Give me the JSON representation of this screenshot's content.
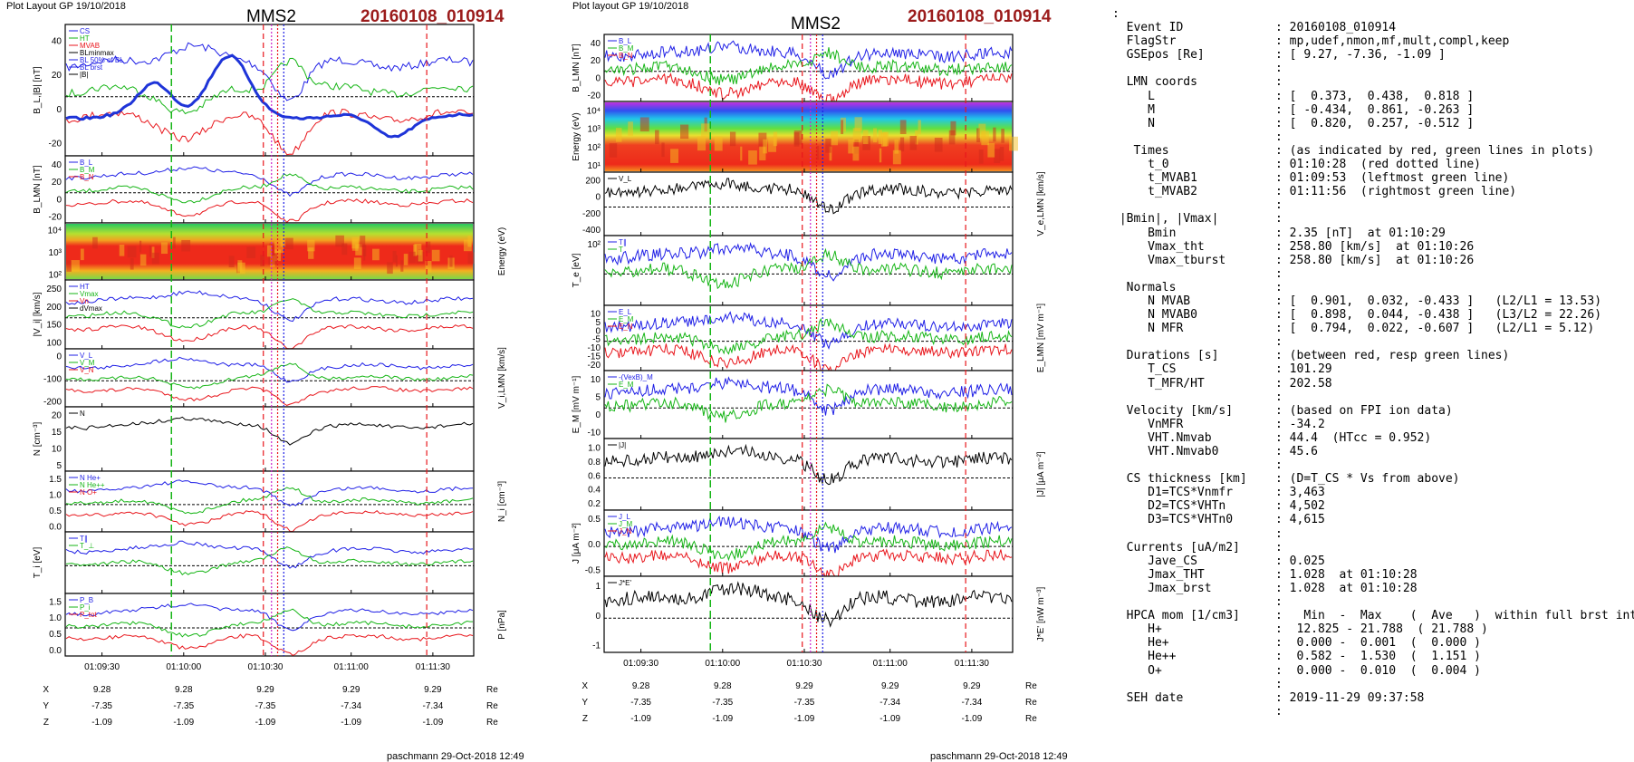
{
  "left": {
    "header": "Plot Layout GP 19/10/2018",
    "spacecraft": "MMS2",
    "event": "20160108_010914",
    "footer": "paschmann 29-Oct-2018 12:49",
    "panels": [
      {
        "ylabel": "B_L,|B| [nT]",
        "yticks": [
          "40",
          "20",
          "0",
          "-20"
        ],
        "legend": [
          "CS",
          "HT",
          "MVAB",
          "BLminmax",
          "BL 50% of BL",
          "BL brst",
          "|B|"
        ]
      },
      {
        "ylabel": "B_LMN [nT]",
        "yticks": [
          "40",
          "20",
          "0",
          "-20"
        ],
        "legend": [
          "B_L",
          "B_M",
          "B_N"
        ]
      },
      {
        "ylabel": "Energy (eV)",
        "yticks": [
          "10^4",
          "10^3",
          "10^2"
        ],
        "legend": []
      },
      {
        "ylabel": "|V_i| [km/s]",
        "yticks": [
          "250",
          "200",
          "150",
          "100"
        ],
        "legend": [
          "HT",
          "Vmax",
          "Vn",
          "dVmax"
        ]
      },
      {
        "ylabel": "V_i,LMN [km/s]",
        "yticks": [
          "0",
          "-100",
          "-200"
        ],
        "legend": [
          "V_L",
          "V_M",
          "V_N"
        ]
      },
      {
        "ylabel": "N [cm^-3]",
        "yticks": [
          "20",
          "15",
          "10",
          "5"
        ],
        "legend": [
          "N"
        ]
      },
      {
        "ylabel": "N_i [cm^-3]",
        "yticks": [
          "1.5",
          "1.0",
          "0.5",
          "0.0"
        ],
        "legend": [
          "N He+",
          "N He++",
          "N O+"
        ]
      },
      {
        "ylabel": "T_i [eV]",
        "yticks": [],
        "legend": [
          "T_||",
          "T_perp"
        ]
      },
      {
        "ylabel": "P [nPa]",
        "yticks": [
          "1.5",
          "1.0",
          "0.5",
          "0.0"
        ],
        "legend": [
          "P_B",
          "P_i",
          "P_tot"
        ]
      }
    ]
  },
  "middle": {
    "header": "Plot layout GP 19/10/2018",
    "spacecraft": "MMS2",
    "event": "20160108_010914",
    "footer": "paschmann 29-Oct-2018 12:49",
    "panels": [
      {
        "ylabel": "B_LMN [nT]",
        "yticks": [
          "40",
          "20",
          "0",
          "-20"
        ],
        "legend": [
          "B_L",
          "B_M",
          "B_N"
        ]
      },
      {
        "ylabel": "Energy (eV)",
        "yticks": [
          "10^4",
          "10^3",
          "10^2",
          "10^1"
        ],
        "legend": []
      },
      {
        "ylabel": "V_e,LMN [km/s]",
        "yticks": [
          "200",
          "0",
          "-200",
          "-400"
        ],
        "legend": [
          "V_L"
        ]
      },
      {
        "ylabel": "T_e [eV]",
        "yticks": [
          "10^2"
        ],
        "legend": [
          "T_||",
          "T"
        ]
      },
      {
        "ylabel": "E_LMN [mV m^-1]",
        "yticks": [
          "10",
          "5",
          "0",
          "-5",
          "-10",
          "-15",
          "-20"
        ],
        "legend": [
          "E_L",
          "E_M",
          "E_N"
        ]
      },
      {
        "ylabel": "E_M [mV m^-1]",
        "yticks": [
          "10",
          "5",
          "0",
          "-10"
        ],
        "legend": [
          "-(VexB)_M",
          "E_M"
        ]
      },
      {
        "ylabel": "|J| [uA m^-2]",
        "yticks": [
          "1.0",
          "0.8",
          "0.6",
          "0.4",
          "0.2"
        ],
        "legend": [
          "|J|"
        ]
      },
      {
        "ylabel": "J [uA m^-2]",
        "yticks": [
          "0.5",
          "0.0",
          "-0.5"
        ],
        "legend": [
          "J_L",
          "J_M",
          "J_N"
        ]
      },
      {
        "ylabel": "J*E' [nW m^-3]",
        "yticks": [
          "1",
          "0",
          "-1"
        ],
        "legend": [
          "J*E'"
        ]
      }
    ]
  },
  "time_ticks": [
    "01:09:30",
    "01:10:00",
    "01:10:30",
    "01:11:00",
    "01:11:30"
  ],
  "position_table": {
    "rows": [
      {
        "label": "X",
        "values": [
          "9.28",
          "9.28",
          "9.29",
          "9.29",
          "9.29"
        ],
        "unit": "Re"
      },
      {
        "label": "Y",
        "values": [
          "-7.35",
          "-7.35",
          "-7.35",
          "-7.34",
          "-7.34"
        ],
        "unit": "Re"
      },
      {
        "label": "Z",
        "values": [
          "-1.09",
          "-1.09",
          "-1.09",
          "-1.09",
          "-1.09"
        ],
        "unit": "Re"
      }
    ]
  },
  "info_text": ":\n  Event ID             : 20160108_010914\n  FlagStr              : mp,udef,nmon,mf,mult,compl,keep\n  GSEpos [Re]          : [ 9.27, -7.36, -1.09 ]\n                       :\n  LMN coords           :\n     L                 : [  0.373,  0.438,  0.818 ]\n     M                 : [ -0.434,  0.861, -0.263 ]\n     N                 : [  0.820,  0.257, -0.512 ]\n                       :\n   Times               : (as indicated by red, green lines in plots)\n     t_0               : 01:10:28  (red dotted line)\n     t_MVAB1           : 01:09:53  (leftmost green line)\n     t_MVAB2           : 01:11:56  (rightmost green line)\n                       :\n |Bmin|, |Vmax|        :\n     Bmin              : 2.35 [nT]  at 01:10:29\n     Vmax_tht          : 258.80 [km/s]  at 01:10:26\n     Vmax_tburst       : 258.80 [km/s]  at 01:10:26\n                       :\n  Normals              :\n     N MVAB            : [  0.901,  0.032, -0.433 ]   (L2/L1 = 13.53)\n     N MVAB0           : [  0.898,  0.044, -0.438 ]   (L3/L2 = 22.26)\n     N MFR             : [  0.794,  0.022, -0.607 ]   (L2/L1 = 5.12)\n                       :\n  Durations [s]        : (between red, resp green lines)\n     T_CS              : 101.29\n     T_MFR/HT          : 202.58\n                       :\n  Velocity [km/s]      : (based on FPI ion data)\n     VnMFR             : -34.2\n     VHT.Nmvab         : 44.4  (HTcc = 0.952)\n     VHT.Nmvab0        : 45.6\n                       :\n  CS thickness [km]    : (D=T_CS * Vs from above)\n     D1=TCS*Vnmfr      : 3,463\n     D2=TCS*VHTn       : 4,502\n     D3=TCS*VHTn0      : 4,615\n                       :\n  Currents [uA/m2]     :\n     Jave_CS           : 0.025\n     Jmax_THT          : 1.028  at 01:10:28\n     Jmax_brst         : 1.028  at 01:10:28\n                       :\n  HPCA mom [1/cm3]     :   Min  -  Max    (  Ave   )  within full brst int\n     H+                :  12.825 - 21.788  ( 21.788 )\n     He+               :  0.000 -  0.001  (  0.000 )\n     He++              :  0.582 -  1.530  (  1.151 )\n     O+                :  0.000 -  0.010  (  0.004 )\n                       :\n  SEH date             : 2019-11-29 09:37:58\n                       :",
  "colors": {
    "event": "#9b1b1b",
    "red": "#e8161c",
    "green": "#16b516",
    "blue": "#1f1fe6",
    "black": "#000000",
    "magenta": "#cc22cc",
    "blue_thick": "#1e34d8",
    "gray": "#777777"
  },
  "chart_data": [
    {
      "type": "line",
      "title": "MMS2 20160108_010914",
      "x": [
        "01:09:30",
        "01:10:00",
        "01:10:30",
        "01:11:00",
        "01:11:30"
      ],
      "series": [
        {
          "name": "B_L",
          "values": [
            -5,
            20,
            30,
            -10,
            -20
          ]
        },
        {
          "name": "|B|",
          "values": [
            15,
            25,
            40,
            35,
            30
          ]
        }
      ],
      "ylabel": "B_L,|B| [nT]",
      "ylim": [
        -30,
        50
      ]
    },
    {
      "type": "line",
      "x": [
        "01:09:30",
        "01:10:00",
        "01:10:30",
        "01:11:00",
        "01:11:30"
      ],
      "series": [
        {
          "name": "T",
          "values": [
            55,
            55,
            65,
            60,
            60
          ]
        },
        {
          "name": "T_||",
          "values": [
            60,
            60,
            75,
            70,
            65
          ]
        }
      ],
      "ylabel": "T_e [eV]"
    }
  ]
}
